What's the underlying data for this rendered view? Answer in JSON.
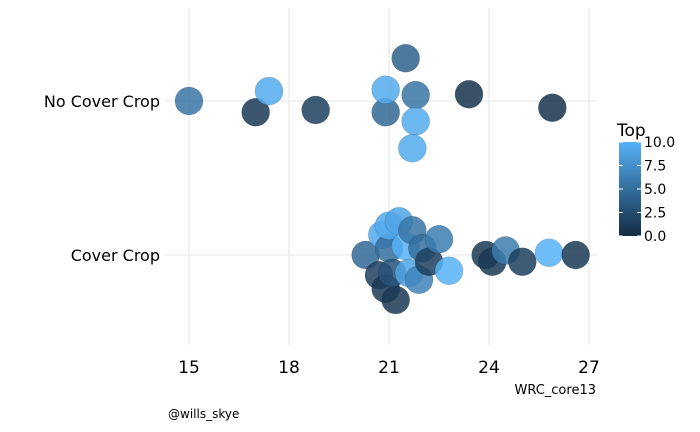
{
  "chart_data": {
    "type": "scatter",
    "title": "",
    "xlabel": "WRC_core13",
    "ylabel": "",
    "caption": "@wills_skye",
    "categories": [
      "Cover Crop",
      "No Cover Crop"
    ],
    "x_ticks": [
      "15",
      "18",
      "21",
      "24",
      "27"
    ],
    "xlim": [
      14.5,
      27.3
    ],
    "legend": {
      "title": "Top",
      "labels": [
        "10.0",
        "7.5",
        "5.0",
        "2.5",
        "0.0"
      ],
      "placement": "right",
      "range": [
        0,
        10
      ],
      "color_low": "#132B43",
      "color_high": "#56B1F7"
    },
    "grid": true,
    "series": [
      {
        "category": "No Cover Crop",
        "points": [
          {
            "x": 15.0,
            "y": 0.0,
            "top": 5.5
          },
          {
            "x": 17.0,
            "y": -0.25,
            "top": 1.0
          },
          {
            "x": 17.4,
            "y": 0.22,
            "top": 9.5
          },
          {
            "x": 18.8,
            "y": -0.2,
            "top": 1.5
          },
          {
            "x": 20.9,
            "y": -0.25,
            "top": 4.5
          },
          {
            "x": 20.9,
            "y": 0.25,
            "top": 9.5
          },
          {
            "x": 21.5,
            "y": 0.95,
            "top": 4.0
          },
          {
            "x": 21.8,
            "y": 0.13,
            "top": 5.5
          },
          {
            "x": 21.8,
            "y": -0.45,
            "top": 9.5
          },
          {
            "x": 21.7,
            "y": -1.05,
            "top": 9.5
          },
          {
            "x": 23.4,
            "y": 0.15,
            "top": 0.5
          },
          {
            "x": 25.9,
            "y": -0.15,
            "top": 0.5
          }
        ]
      },
      {
        "category": "Cover Crop",
        "points": [
          {
            "x": 20.3,
            "y": 0.0,
            "top": 4.5
          },
          {
            "x": 20.8,
            "y": 0.45,
            "top": 9.5
          },
          {
            "x": 21.0,
            "y": 0.15,
            "top": 5.0
          },
          {
            "x": 21.0,
            "y": 0.65,
            "top": 9.5
          },
          {
            "x": 20.7,
            "y": -0.45,
            "top": 1.5
          },
          {
            "x": 20.9,
            "y": -0.75,
            "top": 1.0
          },
          {
            "x": 21.2,
            "y": -1.0,
            "top": 1.0
          },
          {
            "x": 21.3,
            "y": 0.75,
            "top": 9.0
          },
          {
            "x": 21.1,
            "y": -0.4,
            "top": 3.0
          },
          {
            "x": 21.5,
            "y": 0.2,
            "top": 10.0
          },
          {
            "x": 21.6,
            "y": -0.4,
            "top": 9.0
          },
          {
            "x": 21.7,
            "y": 0.55,
            "top": 5.5
          },
          {
            "x": 21.9,
            "y": -0.55,
            "top": 6.5
          },
          {
            "x": 22.0,
            "y": 0.15,
            "top": 5.0
          },
          {
            "x": 22.2,
            "y": -0.15,
            "top": 1.5
          },
          {
            "x": 22.5,
            "y": 0.35,
            "top": 6.0
          },
          {
            "x": 22.8,
            "y": -0.35,
            "top": 10.0
          },
          {
            "x": 23.9,
            "y": 0.0,
            "top": 1.0
          },
          {
            "x": 24.1,
            "y": -0.15,
            "top": 1.0
          },
          {
            "x": 24.5,
            "y": 0.1,
            "top": 6.0
          },
          {
            "x": 25.0,
            "y": -0.15,
            "top": 1.5
          },
          {
            "x": 25.8,
            "y": 0.05,
            "top": 10.0
          },
          {
            "x": 26.6,
            "y": 0.0,
            "top": 1.0
          }
        ]
      }
    ]
  }
}
